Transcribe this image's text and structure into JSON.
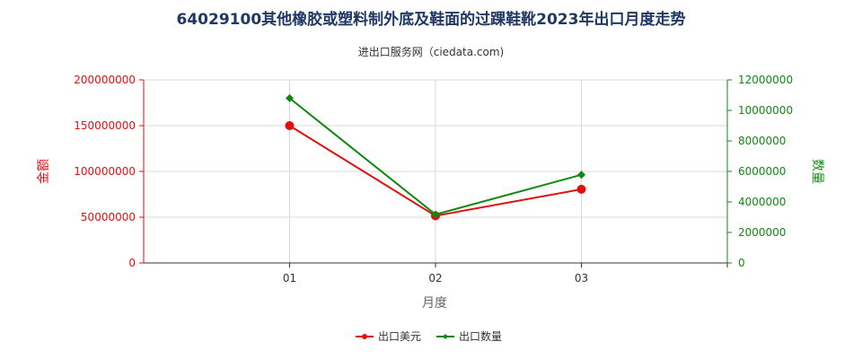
{
  "chart_data": {
    "type": "line",
    "title": "64029100其他橡胶或塑料制外底及鞋面的过踝鞋靴2023年出口月度走势",
    "subtitle": "进出口服务网（ciedata.com)",
    "xlabel": "月度",
    "categories": [
      "01",
      "02",
      "03"
    ],
    "y_left": {
      "label": "金额",
      "ylim": [
        0,
        200000000
      ],
      "ticks": [
        "0",
        "50000000",
        "100000000",
        "150000000",
        "200000000"
      ],
      "color": "#e01010"
    },
    "y_right": {
      "label": "数量",
      "ylim": [
        0,
        12000000
      ],
      "ticks": [
        "0",
        "2000000",
        "4000000",
        "6000000",
        "8000000",
        "10000000",
        "12000000"
      ],
      "color": "#118811"
    },
    "series": [
      {
        "name": "出口美元",
        "axis": "left",
        "color": "#e01010",
        "marker": "circle",
        "values": [
          150000000,
          51500000,
          80500000
        ]
      },
      {
        "name": "出口数量",
        "axis": "right",
        "color": "#118811",
        "marker": "diamond",
        "values": [
          10800000,
          3180000,
          5780000
        ]
      }
    ],
    "grid": true,
    "legend": "bottom-center"
  }
}
